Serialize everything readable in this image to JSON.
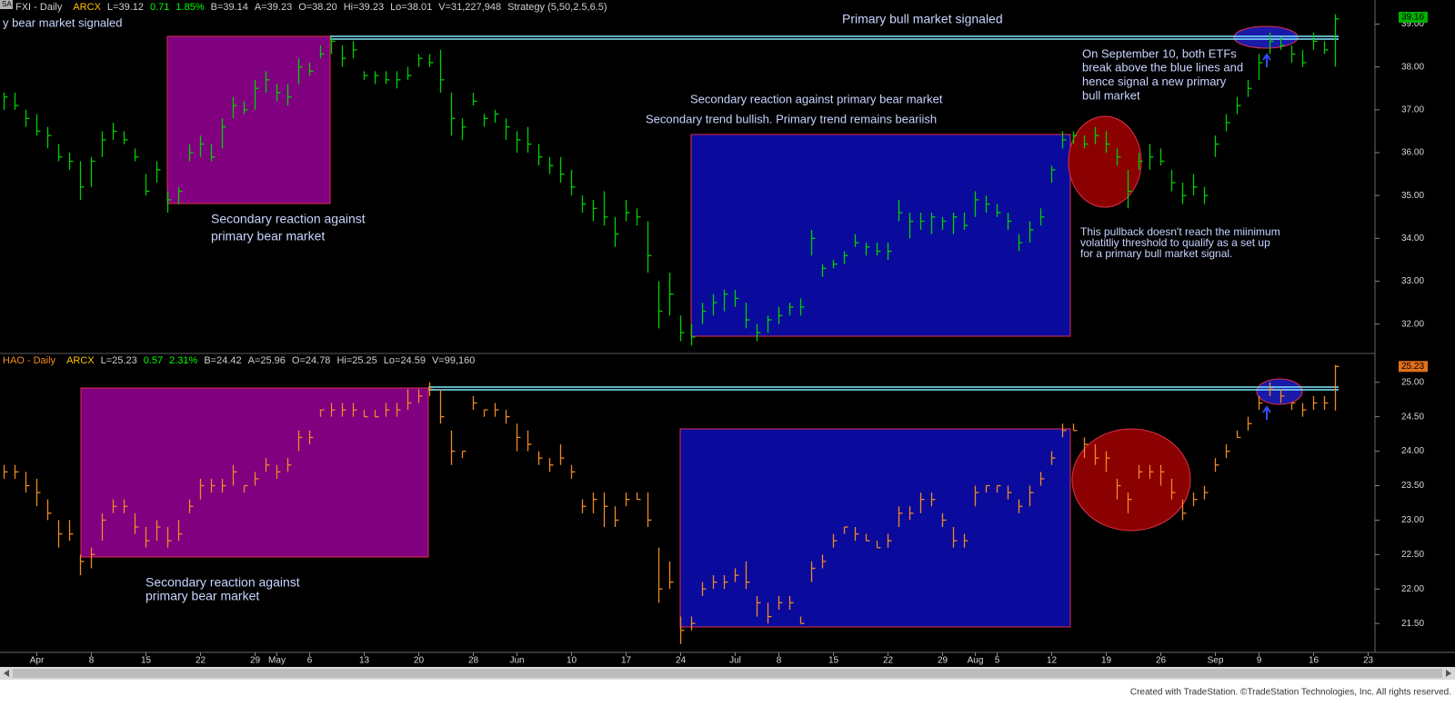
{
  "page": {
    "toolbar_label": "SA",
    "footer": "Created with TradeStation. ©TradeStation Technologies, Inc. All rights reserved."
  },
  "chart_data": [
    {
      "type": "ohlc",
      "color": "#00d000",
      "header": [
        {
          "text": "FXI - Daily",
          "color": "#d0d0d0"
        },
        {
          "text": "ARCX",
          "color": "#ffc000"
        },
        {
          "text": "L=39.12",
          "color": "#d0d0d0"
        },
        {
          "text": "0.71",
          "color": "#00ff00"
        },
        {
          "text": "1.85%",
          "color": "#00ff00"
        },
        {
          "text": "B=39.14",
          "color": "#d0d0d0"
        },
        {
          "text": "A=39.23",
          "color": "#d0d0d0"
        },
        {
          "text": "O=38.20",
          "color": "#d0d0d0"
        },
        {
          "text": "Hi=39.23",
          "color": "#d0d0d0"
        },
        {
          "text": "Lo=38.01",
          "color": "#d0d0d0"
        },
        {
          "text": "V=31,227,948",
          "color": "#d0d0d0"
        },
        {
          "text": "Strategy (5,50,2.5,6.5)",
          "color": "#d0d0d0"
        }
      ],
      "ylim": [
        31.4,
        39.35
      ],
      "yticks": [
        {
          "value": 32,
          "label": "32.00"
        },
        {
          "value": 33,
          "label": "33.00"
        },
        {
          "value": 34,
          "label": "34.00"
        },
        {
          "value": 35,
          "label": "35.00"
        },
        {
          "value": 36,
          "label": "36.00"
        },
        {
          "value": 37,
          "label": "37.00"
        },
        {
          "value": 38,
          "label": "38.00"
        },
        {
          "value": 39,
          "label": "39.00"
        }
      ],
      "last_price": 39.16,
      "last_color": "#00b000",
      "annotations": [
        [
          "y bear market signaled"
        ],
        [
          "Primary bull market signaled"
        ],
        [
          "On September 10, both ETFs",
          "break above the blue lines and",
          "hence signal a new primary",
          "bull market"
        ],
        [
          "Secondary reaction against primary bear market"
        ],
        [
          "Secondary trend bullish. Primary trend remains beariish"
        ],
        [
          "Secondary reaction against",
          "primary bear market"
        ],
        [
          "This pullback doesn't reach the miinimum",
          "volatitliy threshold to qualify as a set up",
          "for a primary bull market signal."
        ]
      ],
      "high": [
        37.4,
        37.4,
        37.0,
        36.9,
        36.6,
        36.2,
        36.0,
        35.8,
        35.9,
        36.5,
        36.7,
        36.5,
        36.1,
        35.5,
        35.8,
        35.1,
        35.2,
        36.2,
        36.4,
        36.2,
        36.8,
        37.3,
        37.2,
        37.7,
        37.9,
        37.6,
        37.6,
        38.2,
        38.1,
        38.5,
        38.7,
        38.5,
        38.6,
        37.9,
        37.9,
        37.9,
        37.9,
        38.0,
        38.3,
        38.3,
        38.4,
        37.4,
        36.8,
        37.4,
        36.9,
        37.0,
        36.8,
        36.5,
        36.6,
        36.2,
        35.9,
        35.9,
        35.6,
        35.0,
        34.9,
        35.1,
        34.5,
        34.9,
        34.7,
        34.4,
        33.0,
        33.2,
        32.2,
        32.0,
        32.5,
        32.7,
        32.8,
        32.8,
        32.5,
        32.0,
        32.2,
        32.4,
        32.5,
        32.6,
        34.2,
        33.4,
        33.5,
        33.7,
        34.1,
        33.9,
        33.9,
        33.9,
        34.9,
        34.6,
        34.6,
        34.6,
        34.5,
        34.6,
        34.6,
        35.1,
        35.0,
        34.8,
        34.6,
        34.1,
        34.4,
        34.7,
        35.7,
        36.5,
        36.5,
        36.4,
        36.6,
        36.5,
        36.1,
        35.6,
        36.0,
        36.2,
        36.1,
        35.6,
        35.3,
        35.5,
        35.2,
        36.4,
        36.9,
        37.3,
        37.7,
        38.3,
        38.8,
        38.7,
        38.5,
        38.4,
        38.8,
        38.6,
        39.23,
        null,
        null,
        null
      ],
      "low": [
        37.0,
        37.0,
        36.6,
        36.4,
        36.1,
        35.8,
        35.6,
        34.9,
        35.2,
        35.9,
        36.3,
        36.2,
        35.8,
        35.0,
        35.3,
        34.6,
        34.8,
        35.8,
        35.9,
        35.8,
        36.1,
        36.8,
        36.9,
        37.0,
        37.4,
        37.2,
        37.1,
        37.6,
        37.8,
        38.2,
        38.3,
        38.0,
        38.2,
        37.7,
        37.6,
        37.6,
        37.5,
        37.7,
        38.0,
        38.0,
        37.4,
        36.4,
        36.3,
        37.1,
        36.6,
        36.7,
        36.3,
        36.0,
        36.0,
        35.7,
        35.5,
        35.3,
        35.0,
        34.6,
        34.4,
        34.3,
        33.8,
        34.4,
        34.3,
        33.2,
        31.9,
        32.2,
        31.6,
        31.5,
        32.0,
        32.2,
        32.3,
        32.4,
        31.9,
        31.6,
        31.8,
        32.0,
        32.2,
        32.2,
        33.6,
        33.1,
        33.3,
        33.4,
        33.8,
        33.6,
        33.6,
        33.5,
        34.4,
        34.0,
        34.2,
        34.1,
        34.2,
        34.1,
        34.2,
        34.5,
        34.6,
        34.5,
        34.2,
        33.7,
        33.9,
        34.3,
        35.3,
        36.1,
        36.2,
        36.1,
        36.2,
        36.0,
        35.7,
        34.7,
        35.6,
        35.6,
        35.7,
        35.1,
        34.8,
        35.0,
        34.8,
        35.9,
        36.5,
        36.9,
        37.3,
        37.7,
        38.3,
        38.4,
        38.1,
        38.0,
        38.4,
        38.3,
        38.01,
        null,
        null,
        null
      ],
      "close": [
        37.3,
        37.1,
        36.8,
        36.5,
        36.4,
        35.9,
        35.8,
        35.2,
        35.8,
        36.3,
        36.5,
        36.3,
        35.9,
        35.1,
        35.6,
        34.9,
        35.1,
        36.0,
        36.2,
        35.9,
        36.6,
        37.1,
        37.0,
        37.5,
        37.7,
        37.4,
        37.3,
        38.0,
        37.9,
        38.3,
        38.6,
        38.2,
        38.4,
        37.8,
        37.8,
        37.7,
        37.7,
        37.8,
        38.2,
        38.1,
        37.7,
        36.8,
        36.6,
        37.2,
        36.8,
        36.9,
        36.6,
        36.3,
        36.2,
        35.9,
        35.7,
        35.5,
        35.2,
        34.8,
        34.7,
        34.5,
        34.1,
        34.6,
        34.5,
        33.6,
        32.3,
        32.7,
        31.8,
        31.7,
        32.3,
        32.5,
        32.7,
        32.6,
        32.1,
        31.8,
        32.1,
        32.2,
        32.4,
        32.4,
        34.0,
        33.3,
        33.4,
        33.6,
        33.9,
        33.8,
        33.7,
        33.7,
        34.6,
        34.4,
        34.4,
        34.5,
        34.4,
        34.5,
        34.3,
        34.9,
        34.8,
        34.6,
        34.4,
        33.9,
        34.2,
        34.5,
        35.6,
        36.3,
        36.4,
        36.2,
        36.4,
        36.2,
        35.9,
        35.1,
        35.8,
        35.9,
        35.8,
        35.3,
        35.0,
        35.2,
        35.0,
        36.2,
        36.7,
        37.1,
        37.5,
        38.1,
        38.6,
        38.5,
        38.3,
        38.1,
        38.6,
        38.4,
        39.12,
        null,
        null,
        null
      ]
    },
    {
      "type": "ohlc",
      "color": "#f08a24",
      "header": [
        {
          "text": "HAO - Daily",
          "color": "#f08a24"
        },
        {
          "text": "ARCX",
          "color": "#ffc000"
        },
        {
          "text": "L=25.23",
          "color": "#d0d0d0"
        },
        {
          "text": "0.57",
          "color": "#00ff00"
        },
        {
          "text": "2.31%",
          "color": "#00ff00"
        },
        {
          "text": "B=24.42",
          "color": "#d0d0d0"
        },
        {
          "text": "A=25.96",
          "color": "#d0d0d0"
        },
        {
          "text": "O=24.78",
          "color": "#d0d0d0"
        },
        {
          "text": "Hi=25.25",
          "color": "#d0d0d0"
        },
        {
          "text": "Lo=24.59",
          "color": "#d0d0d0"
        },
        {
          "text": "V=99,160",
          "color": "#d0d0d0"
        }
      ],
      "ylim": [
        21.08,
        25.3
      ],
      "yticks": [
        {
          "value": 21.5,
          "label": "21.50"
        },
        {
          "value": 22,
          "label": "22.00"
        },
        {
          "value": 22.5,
          "label": "22.50"
        },
        {
          "value": 23,
          "label": "23.00"
        },
        {
          "value": 23.5,
          "label": "23.50"
        },
        {
          "value": 24,
          "label": "24.00"
        },
        {
          "value": 24.5,
          "label": "24.50"
        },
        {
          "value": 25,
          "label": "25.00"
        }
      ],
      "last_price": 25.23,
      "last_color": "#e07018",
      "annotations": [
        [
          "Secondary reaction against",
          "primary bear market"
        ]
      ],
      "categories": [
        null,
        null,
        null,
        "Apr",
        null,
        null,
        null,
        null,
        "8",
        null,
        null,
        null,
        null,
        "15",
        null,
        null,
        null,
        null,
        "22",
        null,
        null,
        null,
        null,
        "29",
        null,
        "May",
        null,
        null,
        "6",
        null,
        null,
        null,
        null,
        "13",
        null,
        null,
        null,
        null,
        "20",
        null,
        null,
        null,
        null,
        "28",
        null,
        null,
        null,
        "Jun",
        null,
        null,
        null,
        null,
        "10",
        null,
        null,
        null,
        null,
        "17",
        null,
        null,
        null,
        null,
        "24",
        null,
        null,
        null,
        null,
        "Jul",
        null,
        null,
        null,
        "8",
        null,
        null,
        null,
        null,
        "15",
        null,
        null,
        null,
        null,
        "22",
        null,
        null,
        null,
        null,
        "29",
        null,
        null,
        "Aug",
        null,
        "5",
        null,
        null,
        null,
        null,
        "12",
        null,
        null,
        null,
        null,
        "19",
        null,
        null,
        null,
        null,
        "26",
        null,
        null,
        null,
        null,
        "Sep",
        null,
        null,
        null,
        "9",
        null,
        null,
        null,
        null,
        "16",
        null,
        null,
        null,
        null,
        "23"
      ],
      "high": [
        23.8,
        23.8,
        23.7,
        23.6,
        23.3,
        23.0,
        23.0,
        22.5,
        22.6,
        23.1,
        23.3,
        23.3,
        23.1,
        22.9,
        23.0,
        22.9,
        23.0,
        23.3,
        23.6,
        23.6,
        23.6,
        23.8,
        23.5,
        23.7,
        23.9,
        23.8,
        23.9,
        24.3,
        24.3,
        24.6,
        24.7,
        24.7,
        24.7,
        24.6,
        24.6,
        24.7,
        24.7,
        24.9,
        24.9,
        25.0,
        24.9,
        24.3,
        24.0,
        24.8,
        24.6,
        24.7,
        24.6,
        24.4,
        24.3,
        24.0,
        23.9,
        24.1,
        23.8,
        23.3,
        23.4,
        23.4,
        23.2,
        23.4,
        23.4,
        23.4,
        22.6,
        22.4,
        21.6,
        21.6,
        22.1,
        22.2,
        22.2,
        22.3,
        22.4,
        21.9,
        21.8,
        21.9,
        21.9,
        21.6,
        22.4,
        22.5,
        22.8,
        22.9,
        22.9,
        22.8,
        22.7,
        22.8,
        23.2,
        23.2,
        23.4,
        23.4,
        23.1,
        22.9,
        22.8,
        23.5,
        23.5,
        23.5,
        23.5,
        23.3,
        23.5,
        23.7,
        24.0,
        24.4,
        24.4,
        24.2,
        24.1,
        24.0,
        23.6,
        23.4,
        23.8,
        23.8,
        23.8,
        23.6,
        23.3,
        23.4,
        23.5,
        23.9,
        24.1,
        24.3,
        24.5,
        24.8,
        25.0,
        24.9,
        24.7,
        24.7,
        24.8,
        24.8,
        25.25,
        null,
        null,
        null
      ],
      "low": [
        23.6,
        23.6,
        23.4,
        23.2,
        23.0,
        22.6,
        22.7,
        22.2,
        22.3,
        22.7,
        23.1,
        23.1,
        22.8,
        22.6,
        22.7,
        22.6,
        22.7,
        23.1,
        23.3,
        23.4,
        23.4,
        23.5,
        23.4,
        23.5,
        23.7,
        23.6,
        23.7,
        24.0,
        24.1,
        24.5,
        24.5,
        24.5,
        24.5,
        24.5,
        24.5,
        24.5,
        24.5,
        24.6,
        24.7,
        24.8,
        24.4,
        23.8,
        23.9,
        24.6,
        24.5,
        24.5,
        24.4,
        24.0,
        24.0,
        23.8,
        23.7,
        23.8,
        23.6,
        23.1,
        23.1,
        22.9,
        22.9,
        23.2,
        23.3,
        22.9,
        21.8,
        22.0,
        21.2,
        21.4,
        21.9,
        22.0,
        22.0,
        22.1,
        22.0,
        21.6,
        21.5,
        21.7,
        21.7,
        21.5,
        22.1,
        22.3,
        22.6,
        22.8,
        22.7,
        22.7,
        22.6,
        22.6,
        22.9,
        23.0,
        23.1,
        23.2,
        22.9,
        22.6,
        22.6,
        23.2,
        23.4,
        23.4,
        23.3,
        23.1,
        23.2,
        23.5,
        23.8,
        24.2,
        24.3,
        23.9,
        23.8,
        23.7,
        23.3,
        23.1,
        23.6,
        23.6,
        23.5,
        23.3,
        23.0,
        23.2,
        23.3,
        23.7,
        23.9,
        24.2,
        24.3,
        24.6,
        24.8,
        24.7,
        24.6,
        24.5,
        24.6,
        24.6,
        24.59,
        null,
        null,
        null
      ],
      "close": [
        23.7,
        23.7,
        23.5,
        23.4,
        23.1,
        22.8,
        22.8,
        22.4,
        22.5,
        23.0,
        23.2,
        23.2,
        22.9,
        22.7,
        22.9,
        22.7,
        22.8,
        23.2,
        23.5,
        23.5,
        23.5,
        23.7,
        23.5,
        23.6,
        23.8,
        23.7,
        23.8,
        24.2,
        24.2,
        24.6,
        24.6,
        24.6,
        24.6,
        24.5,
        24.5,
        24.6,
        24.6,
        24.7,
        24.8,
        24.9,
        24.5,
        24.0,
        24.0,
        24.7,
        24.6,
        24.6,
        24.5,
        24.2,
        24.1,
        23.9,
        23.8,
        23.9,
        23.7,
        23.2,
        23.3,
        23.2,
        23.0,
        23.3,
        23.3,
        23.0,
        22.0,
        22.1,
        21.4,
        21.5,
        22.0,
        22.1,
        22.1,
        22.2,
        22.1,
        21.8,
        21.6,
        21.8,
        21.8,
        21.5,
        22.3,
        22.4,
        22.7,
        22.9,
        22.8,
        22.7,
        22.6,
        22.7,
        23.1,
        23.1,
        23.3,
        23.3,
        23.0,
        22.7,
        22.7,
        23.4,
        23.5,
        23.5,
        23.4,
        23.2,
        23.4,
        23.6,
        23.9,
        24.3,
        24.3,
        24.1,
        23.9,
        23.9,
        23.5,
        23.3,
        23.7,
        23.7,
        23.7,
        23.4,
        23.1,
        23.3,
        23.4,
        23.8,
        24.0,
        24.2,
        24.4,
        24.7,
        24.9,
        24.8,
        24.7,
        24.6,
        24.7,
        24.7,
        25.23,
        null,
        null,
        null
      ]
    }
  ]
}
